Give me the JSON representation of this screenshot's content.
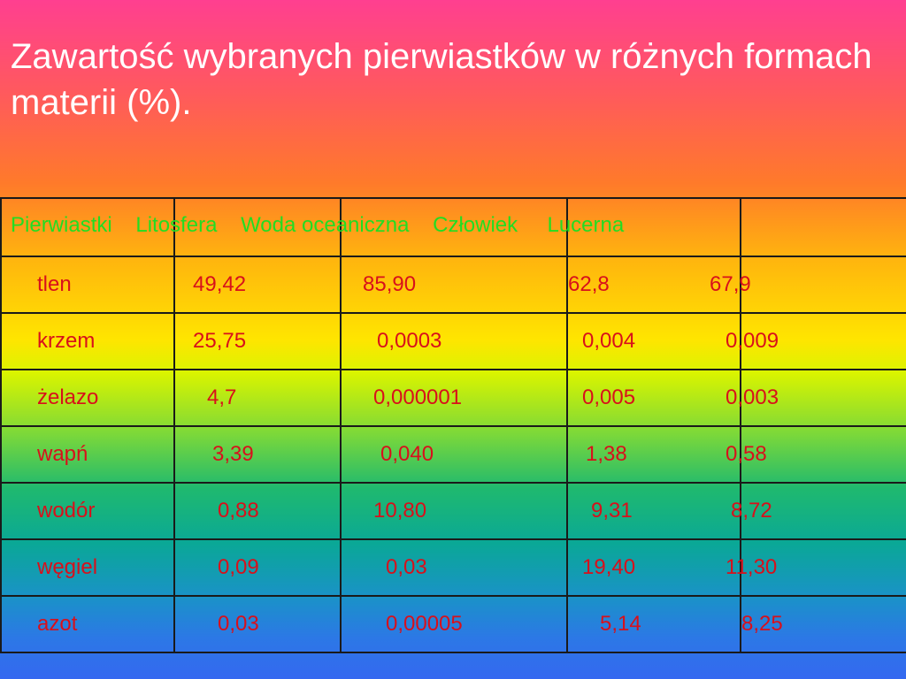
{
  "slide": {
    "title": "Zawartość wybranych pierwiastków w różnych formach materii (%)."
  },
  "table": {
    "header_line": "Pierwiastki    Litosfera    Woda oceaniczna    Człowiek     Lucerna",
    "rows": [
      {
        "name": "tlen",
        "litosfera": "49,42",
        "woda": "85,90",
        "czlowiek": "62,8",
        "lucerna": "67,9"
      },
      {
        "name": "krzem",
        "litosfera": "25,75",
        "woda": "0,0003",
        "czlowiek": "0,004",
        "lucerna": "0,009"
      },
      {
        "name": "żelazo",
        "litosfera": "4,7",
        "woda": "0,000001",
        "czlowiek": "0,005",
        "lucerna": "0,003"
      },
      {
        "name": "wapń",
        "litosfera": "3,39",
        "woda": "0,040",
        "czlowiek": "1,38",
        "lucerna": "0,58"
      },
      {
        "name": "wodór",
        "litosfera": "0,88",
        "woda": "10,80",
        "czlowiek": "9,31",
        "lucerna": "8,72"
      },
      {
        "name": "węgiel",
        "litosfera": "0,09",
        "woda": "0,03",
        "czlowiek": "19,40",
        "lucerna": "11,30"
      },
      {
        "name": "azot",
        "litosfera": "0,03",
        "woda": "0,00005",
        "czlowiek": "5,14",
        "lucerna": "8,25"
      }
    ]
  }
}
